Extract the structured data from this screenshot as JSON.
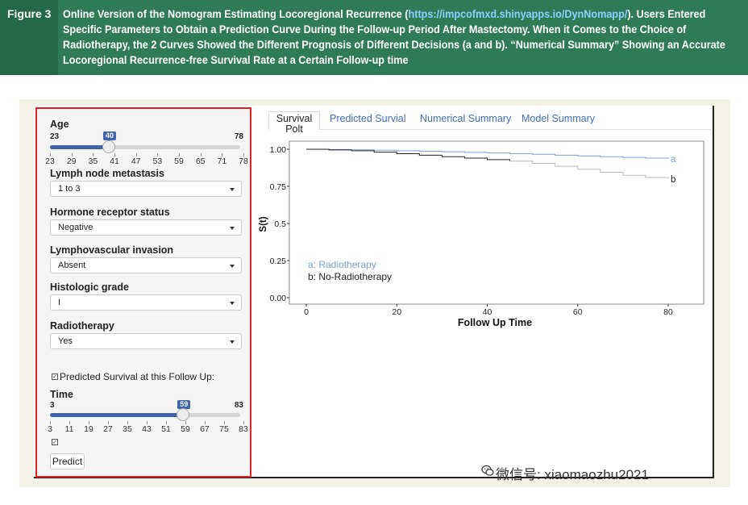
{
  "figure": {
    "label": "Figure 3",
    "caption_pre": "Online Version of the Nomogram Estimating Locoregional Recurrence (",
    "caption_link": "https://impcofmxd.shinyapps.io/DynNomapp/",
    "caption_post": "). Users Entered Specific Parameters to Obtain a Prediction Curve During the Follow-up Period After Mastectomy. When it Comes to the Choice of Radiotherapy, the 2 Curves Showed the Different Prognosis of Different Decisions (a and b). “Numerical Summary” Showing an Accurate Locoregional Recurrence-free Survival Rate at a Certain Follow-up time"
  },
  "sidebar": {
    "age": {
      "label": "Age",
      "min": "23",
      "max": "78",
      "value": "40",
      "value_num": 40,
      "range": [
        23,
        78
      ],
      "ticks": [
        "23",
        "29",
        "35",
        "41",
        "47",
        "53",
        "59",
        "65",
        "71",
        "78"
      ]
    },
    "lymph": {
      "label": "Lymph node metastasis",
      "value": "1 to 3"
    },
    "hormone": {
      "label": "Hormone receptor status",
      "value": "Negative"
    },
    "lvi": {
      "label": "Lymphovascular invasion",
      "value": "Absent"
    },
    "grade": {
      "label": "Histologic grade",
      "value": "I"
    },
    "radio": {
      "label": "Radiotherapy",
      "value": "Yes"
    },
    "predicted_check_label": "Predicted Survival at this Follow Up:",
    "time": {
      "label": "Time",
      "min": "3",
      "max": "83",
      "value": "59",
      "value_num": 59,
      "range": [
        3,
        83
      ],
      "ticks": [
        "3",
        "11",
        "19",
        "27",
        "35",
        "43",
        "51",
        "59",
        "67",
        "75",
        "83"
      ]
    },
    "predict_button": "Predict"
  },
  "tabs": {
    "survival": "Survival\nPolt",
    "predicted": "Predicted Survial",
    "numerical": "Numerical Summary",
    "model": "Model Summary"
  },
  "watermark": "微信号: xiaomaozhu2021",
  "chart_data": {
    "type": "line",
    "xlabel": "Follow Up Time",
    "ylabel": "S(t)",
    "xlim": [
      0,
      80
    ],
    "ylim": [
      0,
      1
    ],
    "xticks": [
      "0",
      "20",
      "40",
      "60",
      "80"
    ],
    "yticks": [
      "0.00",
      "0.25",
      "0.5",
      "0.75",
      "1.00"
    ],
    "grid": false,
    "series": [
      {
        "name": "a",
        "legend": "a: Radiotherapy",
        "color": "#7b9fd1",
        "x": [
          0,
          5,
          10,
          15,
          20,
          25,
          30,
          35,
          40,
          45,
          50,
          55,
          60,
          65,
          70,
          75,
          80
        ],
        "y": [
          1.0,
          0.998,
          0.996,
          0.993,
          0.99,
          0.987,
          0.983,
          0.979,
          0.975,
          0.971,
          0.966,
          0.96,
          0.955,
          0.95,
          0.945,
          0.94,
          0.935
        ]
      },
      {
        "name": "b",
        "legend": "b: No-Radiotherapy",
        "color": "#222222",
        "tail_color": "#bbbbbb",
        "tail_from": 45,
        "x": [
          0,
          5,
          10,
          15,
          20,
          25,
          30,
          35,
          40,
          45,
          50,
          55,
          60,
          65,
          70,
          75,
          80
        ],
        "y": [
          1.0,
          0.995,
          0.99,
          0.98,
          0.97,
          0.96,
          0.95,
          0.94,
          0.93,
          0.92,
          0.905,
          0.885,
          0.865,
          0.845,
          0.825,
          0.81,
          0.8
        ]
      }
    ]
  }
}
